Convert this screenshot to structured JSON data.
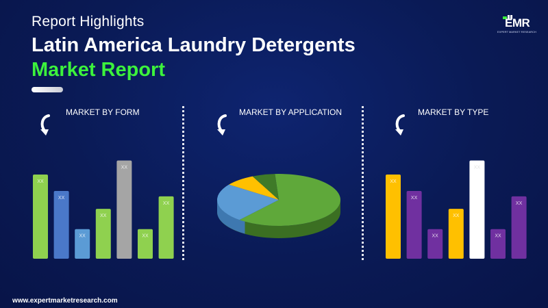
{
  "header": {
    "kicker": "Report Highlights",
    "title_line1": "Latin America Laundry Detergents",
    "title_line2": "Market Report"
  },
  "logo": {
    "text": "EMR",
    "tagline": "EXPERT MARKET RESEARCH"
  },
  "footer": {
    "url": "www.expertmarketresearch.com"
  },
  "colors": {
    "background": "#0a1a55",
    "accent_green": "#3cf23c"
  },
  "icons": {
    "section_icon": "refresh-arrow-icon"
  },
  "chart_data": [
    {
      "type": "bar",
      "title": "MARKET BY FORM",
      "categories": [
        "",
        "",
        "",
        "",
        "",
        "",
        ""
      ],
      "values": [
        108,
        87,
        38,
        64,
        126,
        38,
        80
      ],
      "data_labels": [
        "XX",
        "XX",
        "XX",
        "XX",
        "XX",
        "XX",
        "XX"
      ],
      "colors": [
        "#8fd14f",
        "#4a78c9",
        "#5b9bd5",
        "#8fd14f",
        "#a5a5a5",
        "#8fd14f",
        "#8fd14f"
      ],
      "ylim": [
        0,
        130
      ],
      "grid": false
    },
    {
      "type": "pie",
      "title": "MARKET BY APPLICATION",
      "values": [
        62,
        24,
        8,
        6
      ],
      "colors": [
        "#5fa83a",
        "#5b9bd5",
        "#ffc000",
        "#3f7a28"
      ]
    },
    {
      "type": "bar",
      "title": "MARKET BY TYPE",
      "categories": [
        "",
        "",
        "",
        "",
        "",
        "",
        ""
      ],
      "values": [
        108,
        87,
        38,
        64,
        126,
        38,
        80
      ],
      "data_labels": [
        "XX",
        "XX",
        "XX",
        "XX",
        "XX",
        "XX",
        "XX"
      ],
      "colors": [
        "#ffc000",
        "#7030a0",
        "#7030a0",
        "#ffc000",
        "#ffffff",
        "#7030a0",
        "#7030a0"
      ],
      "ylim": [
        0,
        130
      ],
      "grid": false
    }
  ]
}
